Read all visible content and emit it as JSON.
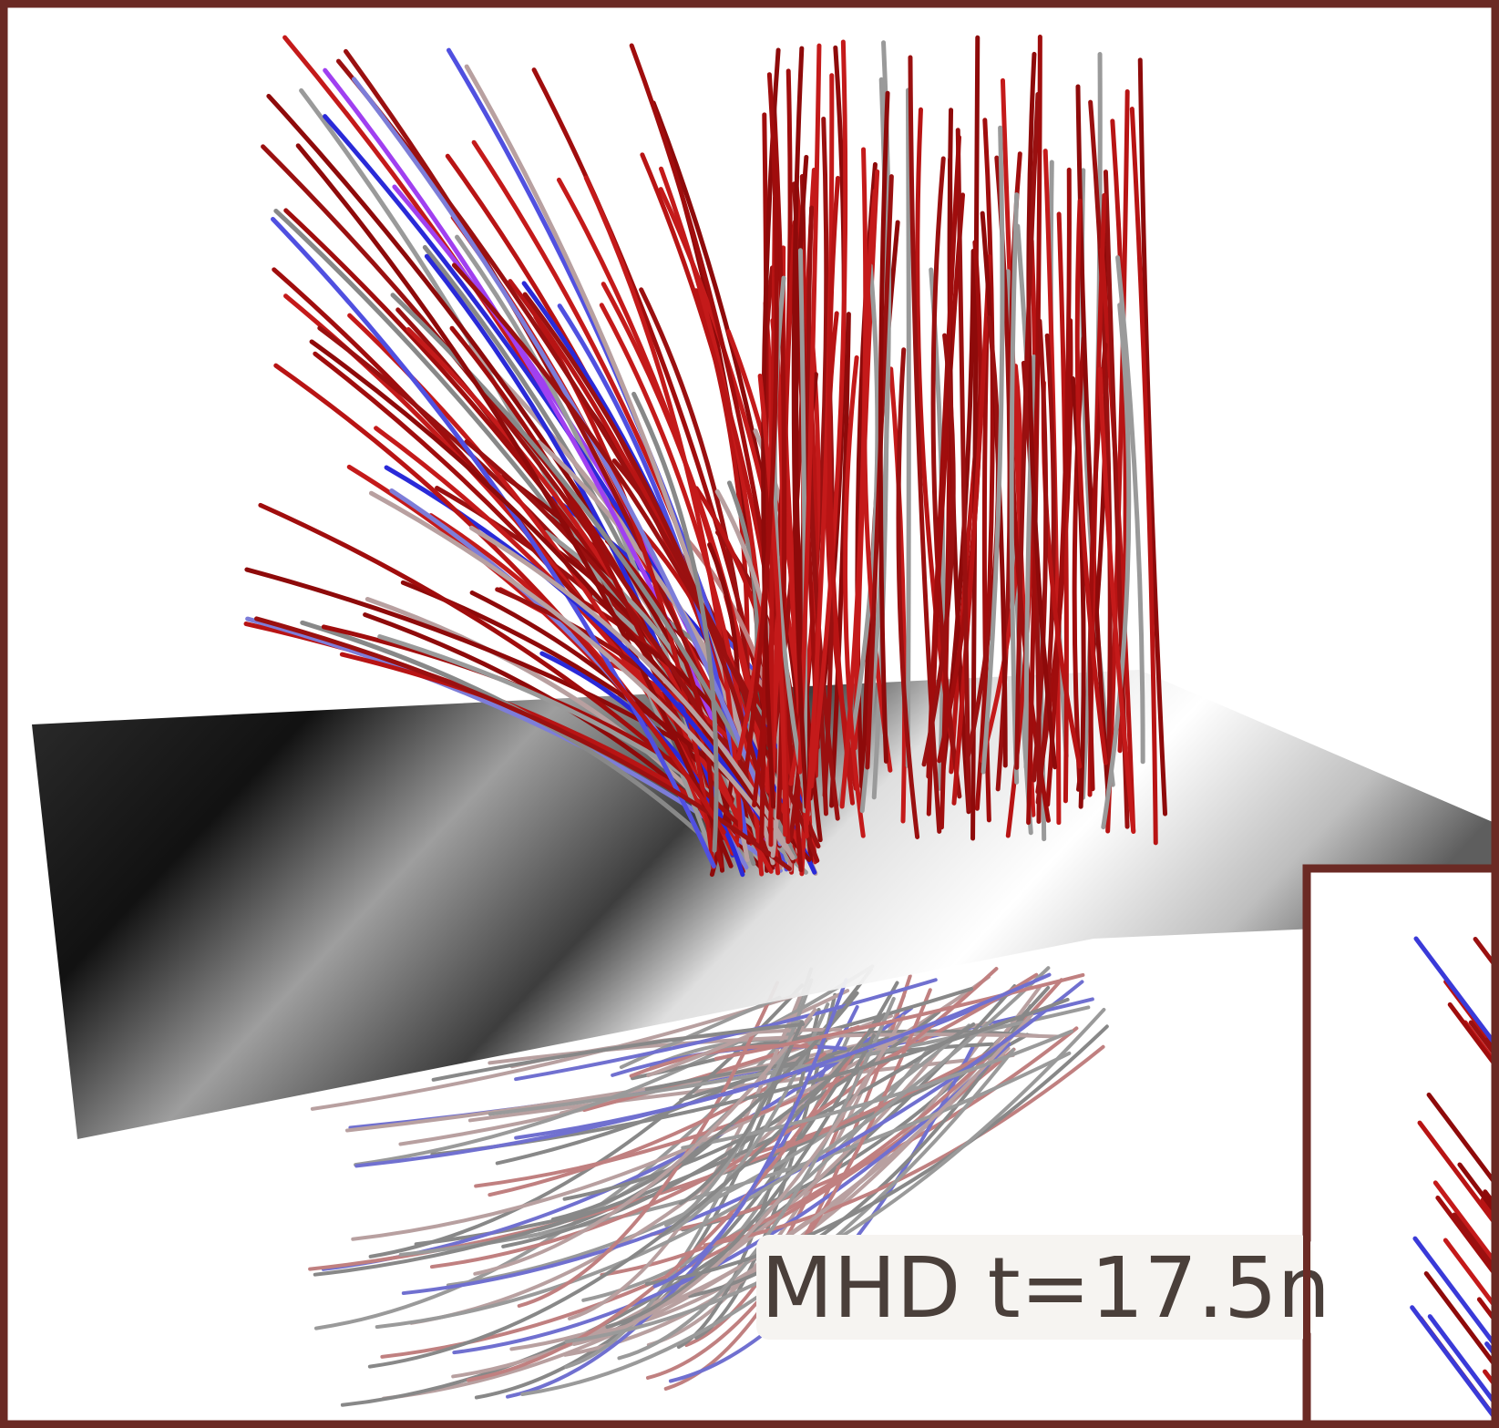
{
  "label": "MHD t=17.5n"
}
